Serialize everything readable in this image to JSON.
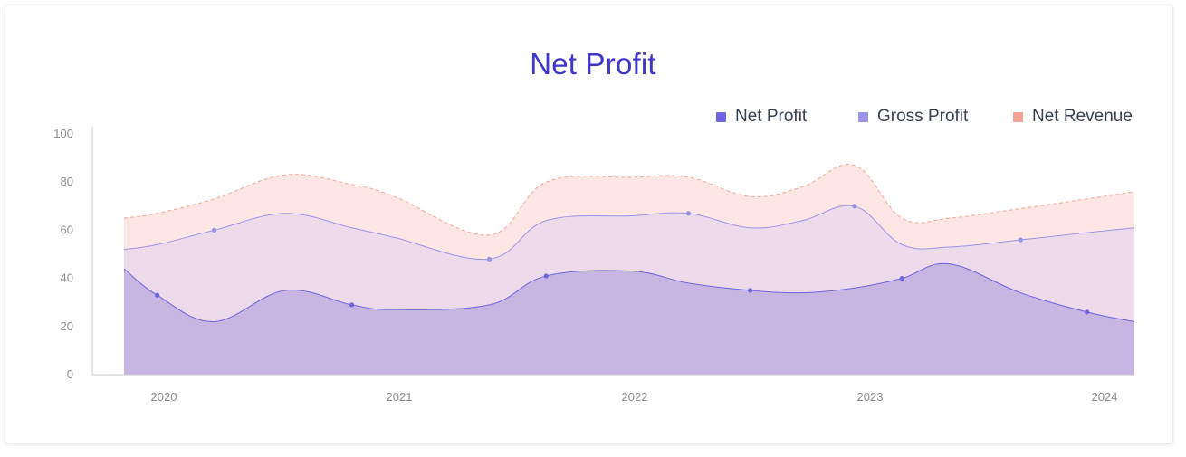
{
  "chart_data": {
    "type": "area",
    "title": "Net Profit",
    "xlabel": "",
    "ylabel": "",
    "ylim": [
      0,
      100
    ],
    "y_ticks": [
      0,
      20,
      40,
      60,
      80,
      100
    ],
    "x_ticks": [
      "2020",
      "2021",
      "2022",
      "2023",
      "2024"
    ],
    "xlim": [
      2019.86,
      2024.12
    ],
    "x": [
      2019.86,
      2020.0,
      2020.24,
      2020.54,
      2020.82,
      2021.0,
      2021.4,
      2021.64,
      2022.0,
      2022.24,
      2022.5,
      2022.72,
      2022.94,
      2023.14,
      2023.34,
      2023.64,
      2023.92,
      2024.12
    ],
    "series": [
      {
        "name": "Net Profit",
        "values": [
          44,
          33,
          22,
          35,
          29,
          27,
          29,
          41,
          43,
          38,
          35,
          34,
          36,
          40,
          46,
          34,
          26,
          22
        ],
        "color": "#6f65e0",
        "fill": "#c7b6e1"
      },
      {
        "name": "Gross Profit",
        "values": [
          52,
          54,
          60,
          67,
          61,
          57,
          48,
          64,
          66,
          67,
          61,
          64,
          70,
          54,
          53,
          56,
          59,
          61
        ],
        "color": "#9b93e8",
        "fill": "#eddaea"
      },
      {
        "name": "Net Revenue",
        "values": [
          65,
          67,
          73,
          83,
          79,
          74,
          58,
          80,
          82,
          82,
          74,
          78,
          87,
          65,
          65,
          69,
          73,
          76
        ],
        "color": "#f4a394",
        "fill": "#fde6e3"
      }
    ],
    "legend_position": "top-right",
    "grid": false
  }
}
